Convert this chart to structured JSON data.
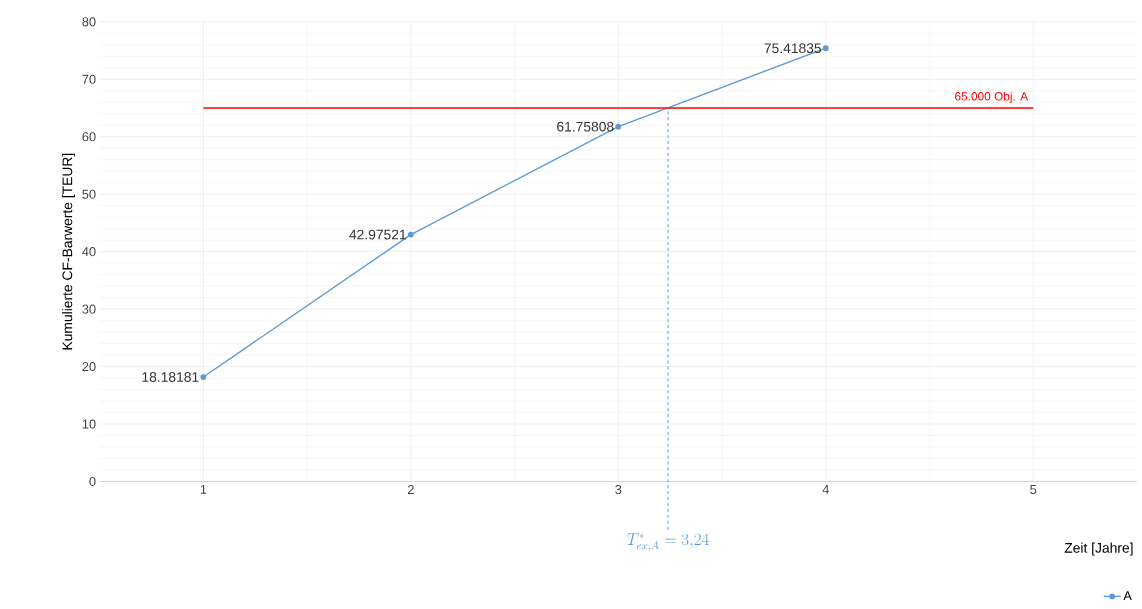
{
  "chart_data": {
    "type": "line",
    "xlabel": "Zeit [Jahre]",
    "ylabel": "Kumulierte CF-Barwerte [TEUR]",
    "x": [
      1,
      2,
      3,
      4
    ],
    "series": [
      {
        "name": "A",
        "color": "#5b9bd5",
        "values": [
          18.18181,
          42.97521,
          61.75808,
          75.41835
        ],
        "value_labels": [
          "18.18181",
          "42.97521",
          "61.75808",
          "75.41835"
        ]
      },
      {
        "type": "line",
        "marker": "none",
        "color": "#ff0000",
        "x": [
          1,
          5
        ],
        "values": [
          65,
          65
        ]
      }
    ],
    "xlim": [
      0.5,
      5.5
    ],
    "ylim": [
      0,
      80
    ],
    "xticks": [
      1,
      2,
      3,
      4,
      5
    ],
    "yticks": [
      0,
      10,
      20,
      30,
      40,
      50,
      60,
      70,
      80
    ],
    "ref_lines": [
      {
        "axis": "x",
        "value": 3.24,
        "label": "T^{*}_{ex,A} = 3{,}24",
        "color": "#5b9bd5",
        "line_style": "dashed"
      }
    ],
    "annotations": [
      {
        "text": "65.000 Obj. A",
        "x": 5,
        "y": 65
      }
    ],
    "grid": true,
    "legend": "bottom right",
    "marker": "circle",
    "line_style": "solid"
  }
}
